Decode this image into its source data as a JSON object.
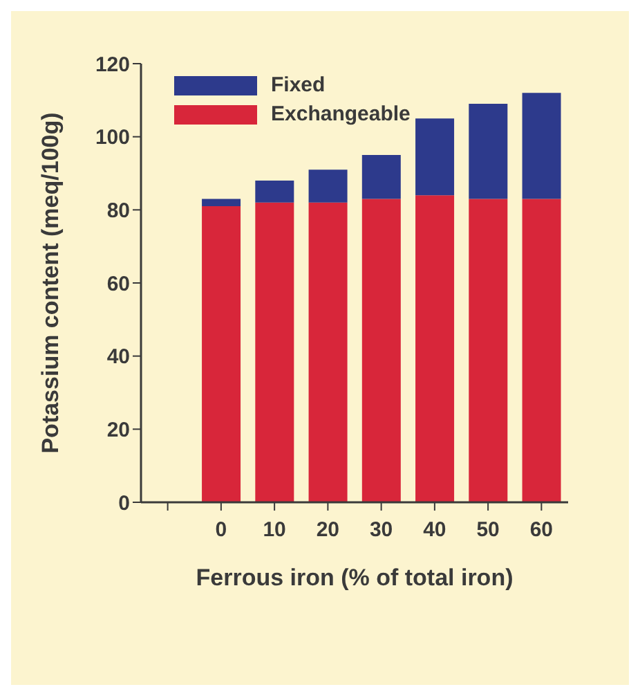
{
  "chart_data": {
    "type": "bar",
    "stacked": true,
    "xlabel": "Ferrous iron (% of total iron)",
    "ylabel": "Potassium content (meq/100g)",
    "categories": [
      null,
      "0",
      "10",
      "20",
      "30",
      "40",
      "50",
      "60"
    ],
    "series": [
      {
        "name": "Exchangeable",
        "color": "#d8263a",
        "values": [
          null,
          81,
          82,
          82,
          83,
          84,
          83,
          83
        ]
      },
      {
        "name": "Fixed",
        "color": "#2d3a8c",
        "values": [
          null,
          2,
          6,
          9,
          12,
          21,
          26,
          29
        ]
      }
    ],
    "ylim": [
      0,
      120
    ],
    "yticks": [
      0,
      20,
      40,
      60,
      80,
      100,
      120
    ],
    "grid": false,
    "legend": "top left"
  }
}
